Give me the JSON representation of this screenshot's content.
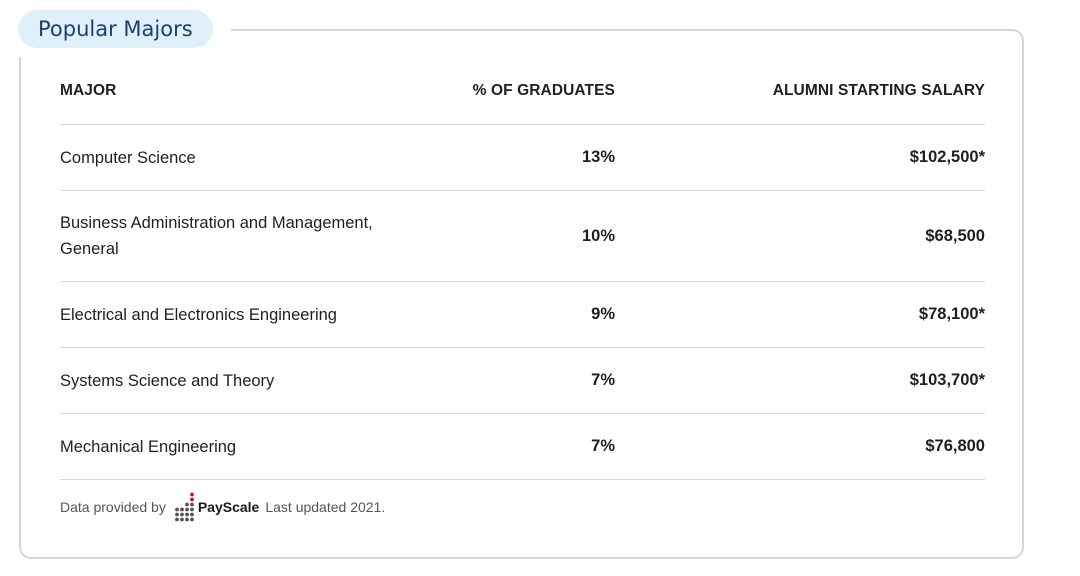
{
  "section": {
    "title": "Popular Majors"
  },
  "table": {
    "headers": {
      "major": "MAJOR",
      "percent": "% OF GRADUATES",
      "salary": "ALUMNI STARTING SALARY"
    },
    "rows": [
      {
        "major": "Computer Science",
        "percent": "13%",
        "salary": "$102,500*"
      },
      {
        "major": "Business Administration and Management, General",
        "percent": "10%",
        "salary": "$68,500"
      },
      {
        "major": "Electrical and Electronics Engineering",
        "percent": "9%",
        "salary": "$78,100*"
      },
      {
        "major": "Systems Science and Theory",
        "percent": "7%",
        "salary": "$103,700*"
      },
      {
        "major": "Mechanical Engineering",
        "percent": "7%",
        "salary": "$76,800"
      }
    ]
  },
  "footer": {
    "prefix": "Data provided by",
    "provider": "PayScale",
    "updated": "Last updated 2021."
  },
  "colors": {
    "pill_background": "#dff0fb",
    "title_text": "#1c3f6e",
    "logo_accent": "#c8102e"
  }
}
